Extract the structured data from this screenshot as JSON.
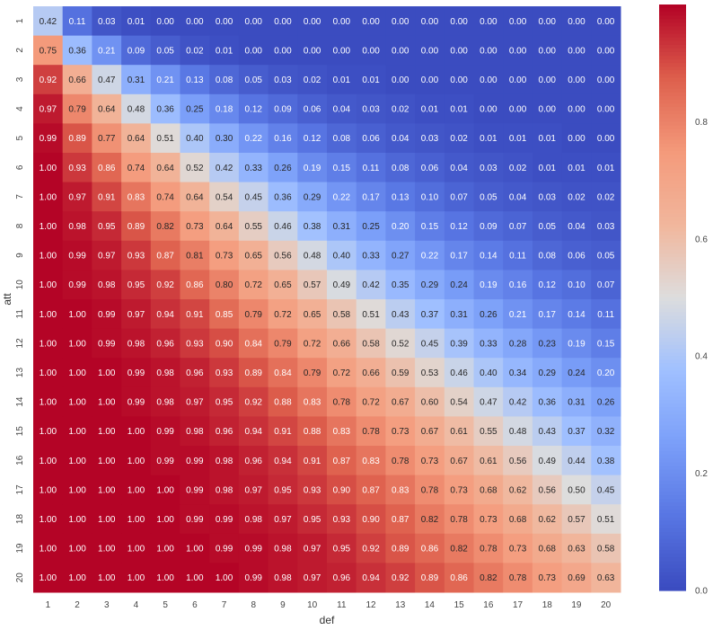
{
  "chart_data": {
    "type": "heatmap",
    "title": "",
    "xlabel": "def",
    "ylabel": "att",
    "x_ticks": [
      "1",
      "2",
      "3",
      "4",
      "5",
      "6",
      "7",
      "8",
      "9",
      "10",
      "11",
      "12",
      "13",
      "14",
      "15",
      "16",
      "17",
      "18",
      "19",
      "20"
    ],
    "y_ticks": [
      "1",
      "2",
      "3",
      "4",
      "5",
      "6",
      "7",
      "8",
      "9",
      "10",
      "11",
      "12",
      "13",
      "14",
      "15",
      "16",
      "17",
      "18",
      "19",
      "20"
    ],
    "values": [
      [
        "0.42",
        "0.11",
        "0.03",
        "0.01",
        "0.00",
        "0.00",
        "0.00",
        "0.00",
        "0.00",
        "0.00",
        "0.00",
        "0.00",
        "0.00",
        "0.00",
        "0.00",
        "0.00",
        "0.00",
        "0.00",
        "0.00",
        "0.00"
      ],
      [
        "0.75",
        "0.36",
        "0.21",
        "0.09",
        "0.05",
        "0.02",
        "0.01",
        "0.00",
        "0.00",
        "0.00",
        "0.00",
        "0.00",
        "0.00",
        "0.00",
        "0.00",
        "0.00",
        "0.00",
        "0.00",
        "0.00",
        "0.00"
      ],
      [
        "0.92",
        "0.66",
        "0.47",
        "0.31",
        "0.21",
        "0.13",
        "0.08",
        "0.05",
        "0.03",
        "0.02",
        "0.01",
        "0.01",
        "0.00",
        "0.00",
        "0.00",
        "0.00",
        "0.00",
        "0.00",
        "0.00",
        "0.00"
      ],
      [
        "0.97",
        "0.79",
        "0.64",
        "0.48",
        "0.36",
        "0.25",
        "0.18",
        "0.12",
        "0.09",
        "0.06",
        "0.04",
        "0.03",
        "0.02",
        "0.01",
        "0.01",
        "0.00",
        "0.00",
        "0.00",
        "0.00",
        "0.00"
      ],
      [
        "0.99",
        "0.89",
        "0.77",
        "0.64",
        "0.51",
        "0.40",
        "0.30",
        "0.22",
        "0.16",
        "0.12",
        "0.08",
        "0.06",
        "0.04",
        "0.03",
        "0.02",
        "0.01",
        "0.01",
        "0.01",
        "0.00",
        "0.00"
      ],
      [
        "1.00",
        "0.93",
        "0.86",
        "0.74",
        "0.64",
        "0.52",
        "0.42",
        "0.33",
        "0.26",
        "0.19",
        "0.15",
        "0.11",
        "0.08",
        "0.06",
        "0.04",
        "0.03",
        "0.02",
        "0.01",
        "0.01",
        "0.01"
      ],
      [
        "1.00",
        "0.97",
        "0.91",
        "0.83",
        "0.74",
        "0.64",
        "0.54",
        "0.45",
        "0.36",
        "0.29",
        "0.22",
        "0.17",
        "0.13",
        "0.10",
        "0.07",
        "0.05",
        "0.04",
        "0.03",
        "0.02",
        "0.02"
      ],
      [
        "1.00",
        "0.98",
        "0.95",
        "0.89",
        "0.82",
        "0.73",
        "0.64",
        "0.55",
        "0.46",
        "0.38",
        "0.31",
        "0.25",
        "0.20",
        "0.15",
        "0.12",
        "0.09",
        "0.07",
        "0.05",
        "0.04",
        "0.03"
      ],
      [
        "1.00",
        "0.99",
        "0.97",
        "0.93",
        "0.87",
        "0.81",
        "0.73",
        "0.65",
        "0.56",
        "0.48",
        "0.40",
        "0.33",
        "0.27",
        "0.22",
        "0.17",
        "0.14",
        "0.11",
        "0.08",
        "0.06",
        "0.05"
      ],
      [
        "1.00",
        "0.99",
        "0.98",
        "0.95",
        "0.92",
        "0.86",
        "0.80",
        "0.72",
        "0.65",
        "0.57",
        "0.49",
        "0.42",
        "0.35",
        "0.29",
        "0.24",
        "0.19",
        "0.16",
        "0.12",
        "0.10",
        "0.07"
      ],
      [
        "1.00",
        "1.00",
        "0.99",
        "0.97",
        "0.94",
        "0.91",
        "0.85",
        "0.79",
        "0.72",
        "0.65",
        "0.58",
        "0.51",
        "0.43",
        "0.37",
        "0.31",
        "0.26",
        "0.21",
        "0.17",
        "0.14",
        "0.11"
      ],
      [
        "1.00",
        "1.00",
        "0.99",
        "0.98",
        "0.96",
        "0.93",
        "0.90",
        "0.84",
        "0.79",
        "0.72",
        "0.66",
        "0.58",
        "0.52",
        "0.45",
        "0.39",
        "0.33",
        "0.28",
        "0.23",
        "0.19",
        "0.15"
      ],
      [
        "1.00",
        "1.00",
        "1.00",
        "0.99",
        "0.98",
        "0.96",
        "0.93",
        "0.89",
        "0.84",
        "0.79",
        "0.72",
        "0.66",
        "0.59",
        "0.53",
        "0.46",
        "0.40",
        "0.34",
        "0.29",
        "0.24",
        "0.20"
      ],
      [
        "1.00",
        "1.00",
        "1.00",
        "0.99",
        "0.98",
        "0.97",
        "0.95",
        "0.92",
        "0.88",
        "0.83",
        "0.78",
        "0.72",
        "0.67",
        "0.60",
        "0.54",
        "0.47",
        "0.42",
        "0.36",
        "0.31",
        "0.26"
      ],
      [
        "1.00",
        "1.00",
        "1.00",
        "1.00",
        "0.99",
        "0.98",
        "0.96",
        "0.94",
        "0.91",
        "0.88",
        "0.83",
        "0.78",
        "0.73",
        "0.67",
        "0.61",
        "0.55",
        "0.48",
        "0.43",
        "0.37",
        "0.32"
      ],
      [
        "1.00",
        "1.00",
        "1.00",
        "1.00",
        "0.99",
        "0.99",
        "0.98",
        "0.96",
        "0.94",
        "0.91",
        "0.87",
        "0.83",
        "0.78",
        "0.73",
        "0.67",
        "0.61",
        "0.56",
        "0.49",
        "0.44",
        "0.38"
      ],
      [
        "1.00",
        "1.00",
        "1.00",
        "1.00",
        "1.00",
        "0.99",
        "0.98",
        "0.97",
        "0.95",
        "0.93",
        "0.90",
        "0.87",
        "0.83",
        "0.78",
        "0.73",
        "0.68",
        "0.62",
        "0.56",
        "0.50",
        "0.45"
      ],
      [
        "1.00",
        "1.00",
        "1.00",
        "1.00",
        "1.00",
        "0.99",
        "0.99",
        "0.98",
        "0.97",
        "0.95",
        "0.93",
        "0.90",
        "0.87",
        "0.82",
        "0.78",
        "0.73",
        "0.68",
        "0.62",
        "0.57",
        "0.51"
      ],
      [
        "1.00",
        "1.00",
        "1.00",
        "1.00",
        "1.00",
        "1.00",
        "0.99",
        "0.99",
        "0.98",
        "0.97",
        "0.95",
        "0.92",
        "0.89",
        "0.86",
        "0.82",
        "0.78",
        "0.73",
        "0.68",
        "0.63",
        "0.58"
      ],
      [
        "1.00",
        "1.00",
        "1.00",
        "1.00",
        "1.00",
        "1.00",
        "1.00",
        "0.99",
        "0.98",
        "0.97",
        "0.96",
        "0.94",
        "0.92",
        "0.89",
        "0.86",
        "0.82",
        "0.78",
        "0.73",
        "0.69",
        "0.63"
      ]
    ],
    "vmin": 0,
    "vmax": 1,
    "colormap": "coolwarm",
    "colorbar": {
      "ticks": [
        "0.0",
        "0.2",
        "0.4",
        "0.6",
        "0.8"
      ]
    },
    "grid": false,
    "colors": {
      "low": "#3b4cc0",
      "mid": "#dddddd",
      "high": "#b40426"
    }
  }
}
